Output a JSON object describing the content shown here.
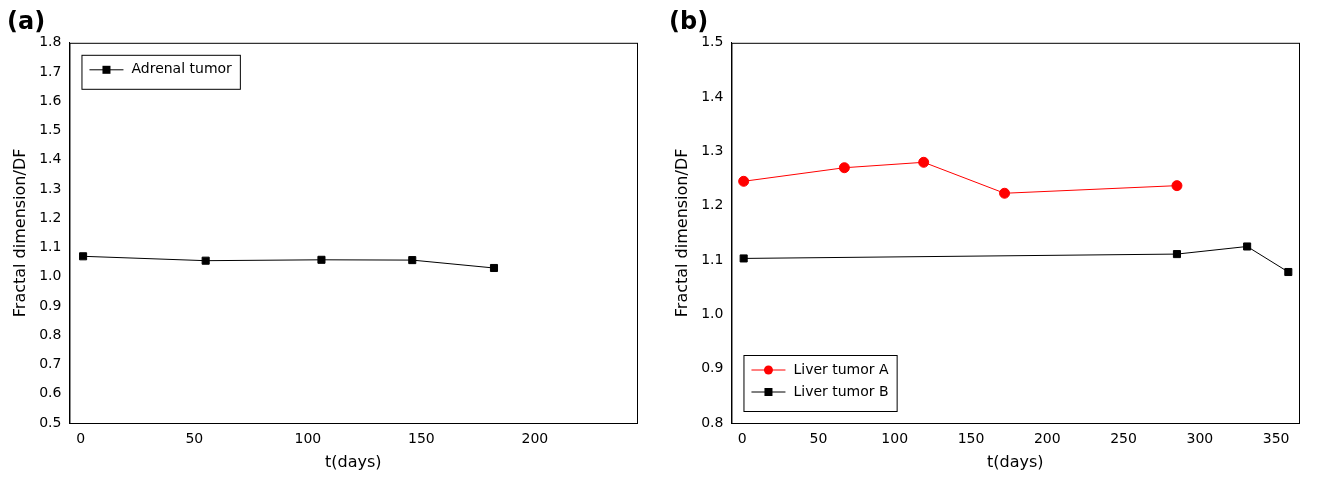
{
  "chart_data": [
    {
      "type": "line",
      "title": "(a)",
      "x_label": "t(days)",
      "y_label": "Fractal dimension/DF",
      "xlim": [
        -5,
        245
      ],
      "xticks": [
        0,
        50,
        100,
        150,
        200
      ],
      "ylim": [
        0.5,
        1.8
      ],
      "yticks": [
        0.5,
        0.6,
        0.7,
        0.8,
        0.9,
        {
          "value": 1,
          "label": "1.0"
        },
        1.1,
        1.2,
        1.3,
        1.4,
        1.5,
        1.6,
        1.7,
        1.8
      ],
      "grid": false,
      "legend": "upper left",
      "series": [
        {
          "name": "Adrenal tumor",
          "color": "#000000",
          "marker": "square",
          "line_style": "solid",
          "x": [
            1,
            55,
            106,
            146,
            182
          ],
          "values": [
            1.07,
            1.055,
            1.058,
            1.057,
            1.03
          ]
        }
      ]
    },
    {
      "type": "line",
      "title": "(b)",
      "x_label": "t(days)",
      "y_label": "Fractal dimension/DF",
      "xlim": [
        -7,
        365
      ],
      "xticks": [
        0,
        50,
        100,
        150,
        200,
        250,
        300,
        350
      ],
      "ylim": [
        0.8,
        1.5
      ],
      "yticks": [
        0.8,
        0.9,
        {
          "value": 1,
          "label": "1.0"
        },
        1.1,
        1.2,
        1.3,
        1.4,
        1.5
      ],
      "grid": false,
      "legend": "lower left",
      "series": [
        {
          "name": "Liver tumor A",
          "color": "#ff0000",
          "marker": "circle",
          "line_style": "solid",
          "x": [
            1,
            67,
            119,
            172,
            285
          ],
          "values": [
            1.245,
            1.27,
            1.28,
            1.223,
            1.237
          ]
        },
        {
          "name": "Liver tumor B",
          "color": "#000000",
          "marker": "square",
          "line_style": "solid",
          "x": [
            1,
            285,
            331,
            358
          ],
          "values": [
            1.103,
            1.111,
            1.125,
            1.078
          ]
        }
      ]
    }
  ]
}
